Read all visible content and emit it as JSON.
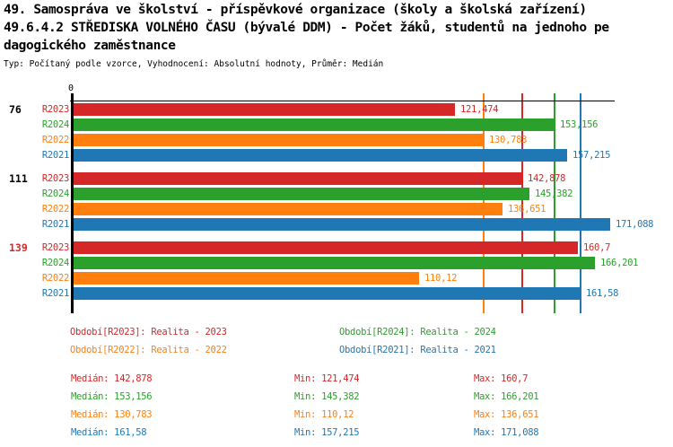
{
  "title": {
    "line1": "49. Samospráva ve školství - příspěvkové organizace (školy a školská zařízení)",
    "line2": "49.6.4.2 STŘEDISKA VOLNÉHO ČASU (bývalé DDM) - Počet žáků, studentů na jednoho pe",
    "line3": "dagogického zaměstnance",
    "subtitle": "Typ: Počítaný podle vzorce, Vyhodnocení: Absolutní hodnoty, Průměr: Medián"
  },
  "colors": {
    "R2023": "#d62728",
    "R2024": "#2ca02c",
    "R2022": "#ff7f0e",
    "R2021": "#1f77b4",
    "axis": "#000000",
    "group_label_default": "#000000",
    "group_label_highlight": "#d62728"
  },
  "chart_data": {
    "type": "bar",
    "orientation": "horizontal",
    "axis_origin_label": "0",
    "xlim": [
      0,
      172.4
    ],
    "grid": false,
    "series_order": [
      "R2023",
      "R2024",
      "R2022",
      "R2021"
    ],
    "groups": [
      {
        "label": "76",
        "label_color": "#000000",
        "bars": [
          {
            "series": "R2023",
            "value": 121.474,
            "value_label": "121,474"
          },
          {
            "series": "R2024",
            "value": 153.156,
            "value_label": "153,156"
          },
          {
            "series": "R2022",
            "value": 130.783,
            "value_label": "130,783"
          },
          {
            "series": "R2021",
            "value": 157.215,
            "value_label": "157,215"
          }
        ]
      },
      {
        "label": "111",
        "label_color": "#000000",
        "bars": [
          {
            "series": "R2023",
            "value": 142.878,
            "value_label": "142,878"
          },
          {
            "series": "R2024",
            "value": 145.382,
            "value_label": "145,382"
          },
          {
            "series": "R2022",
            "value": 136.651,
            "value_label": "136,651"
          },
          {
            "series": "R2021",
            "value": 171.088,
            "value_label": "171,088"
          }
        ]
      },
      {
        "label": "139",
        "label_color": "#d62728",
        "bars": [
          {
            "series": "R2023",
            "value": 160.7,
            "value_label": "160,7"
          },
          {
            "series": "R2024",
            "value": 166.201,
            "value_label": "166,201"
          },
          {
            "series": "R2022",
            "value": 110.12,
            "value_label": "110,12"
          },
          {
            "series": "R2021",
            "value": 161.58,
            "value_label": "161,58"
          }
        ]
      }
    ],
    "median_lines": [
      {
        "series": "R2022",
        "value": 130.783
      },
      {
        "series": "R2023",
        "value": 142.878
      },
      {
        "series": "R2024",
        "value": 153.156
      },
      {
        "series": "R2021",
        "value": 161.58
      }
    ],
    "stats": [
      {
        "series": "R2023",
        "median": 142.878,
        "min": 121.474,
        "max": 160.7
      },
      {
        "series": "R2024",
        "median": 153.156,
        "min": 145.382,
        "max": 166.201
      },
      {
        "series": "R2022",
        "median": 130.783,
        "min": 110.12,
        "max": 136.651
      },
      {
        "series": "R2021",
        "median": 161.58,
        "min": 157.215,
        "max": 171.088
      }
    ]
  },
  "legend": {
    "items": [
      {
        "series": "R2023",
        "text": "Období[R2023]: Realita - 2023",
        "row": 0,
        "col": 0
      },
      {
        "series": "R2024",
        "text": "Období[R2024]: Realita - 2024",
        "row": 0,
        "col": 1
      },
      {
        "series": "R2022",
        "text": "Období[R2022]: Realita - 2022",
        "row": 1,
        "col": 0
      },
      {
        "series": "R2021",
        "text": "Období[R2021]: Realita - 2021",
        "row": 1,
        "col": 1
      }
    ]
  },
  "stats_panel": {
    "rows": [
      {
        "series": "R2023",
        "median_text": "Medián: 142,878",
        "min_text": "Min: 121,474",
        "max_text": "Max: 160,7"
      },
      {
        "series": "R2024",
        "median_text": "Medián: 153,156",
        "min_text": "Min: 145,382",
        "max_text": "Max: 166,201"
      },
      {
        "series": "R2022",
        "median_text": "Medián: 130,783",
        "min_text": "Min: 110,12",
        "max_text": "Max: 136,651"
      },
      {
        "series": "R2021",
        "median_text": "Medián: 161,58",
        "min_text": "Min: 157,215",
        "max_text": "Max: 171,088"
      }
    ]
  }
}
